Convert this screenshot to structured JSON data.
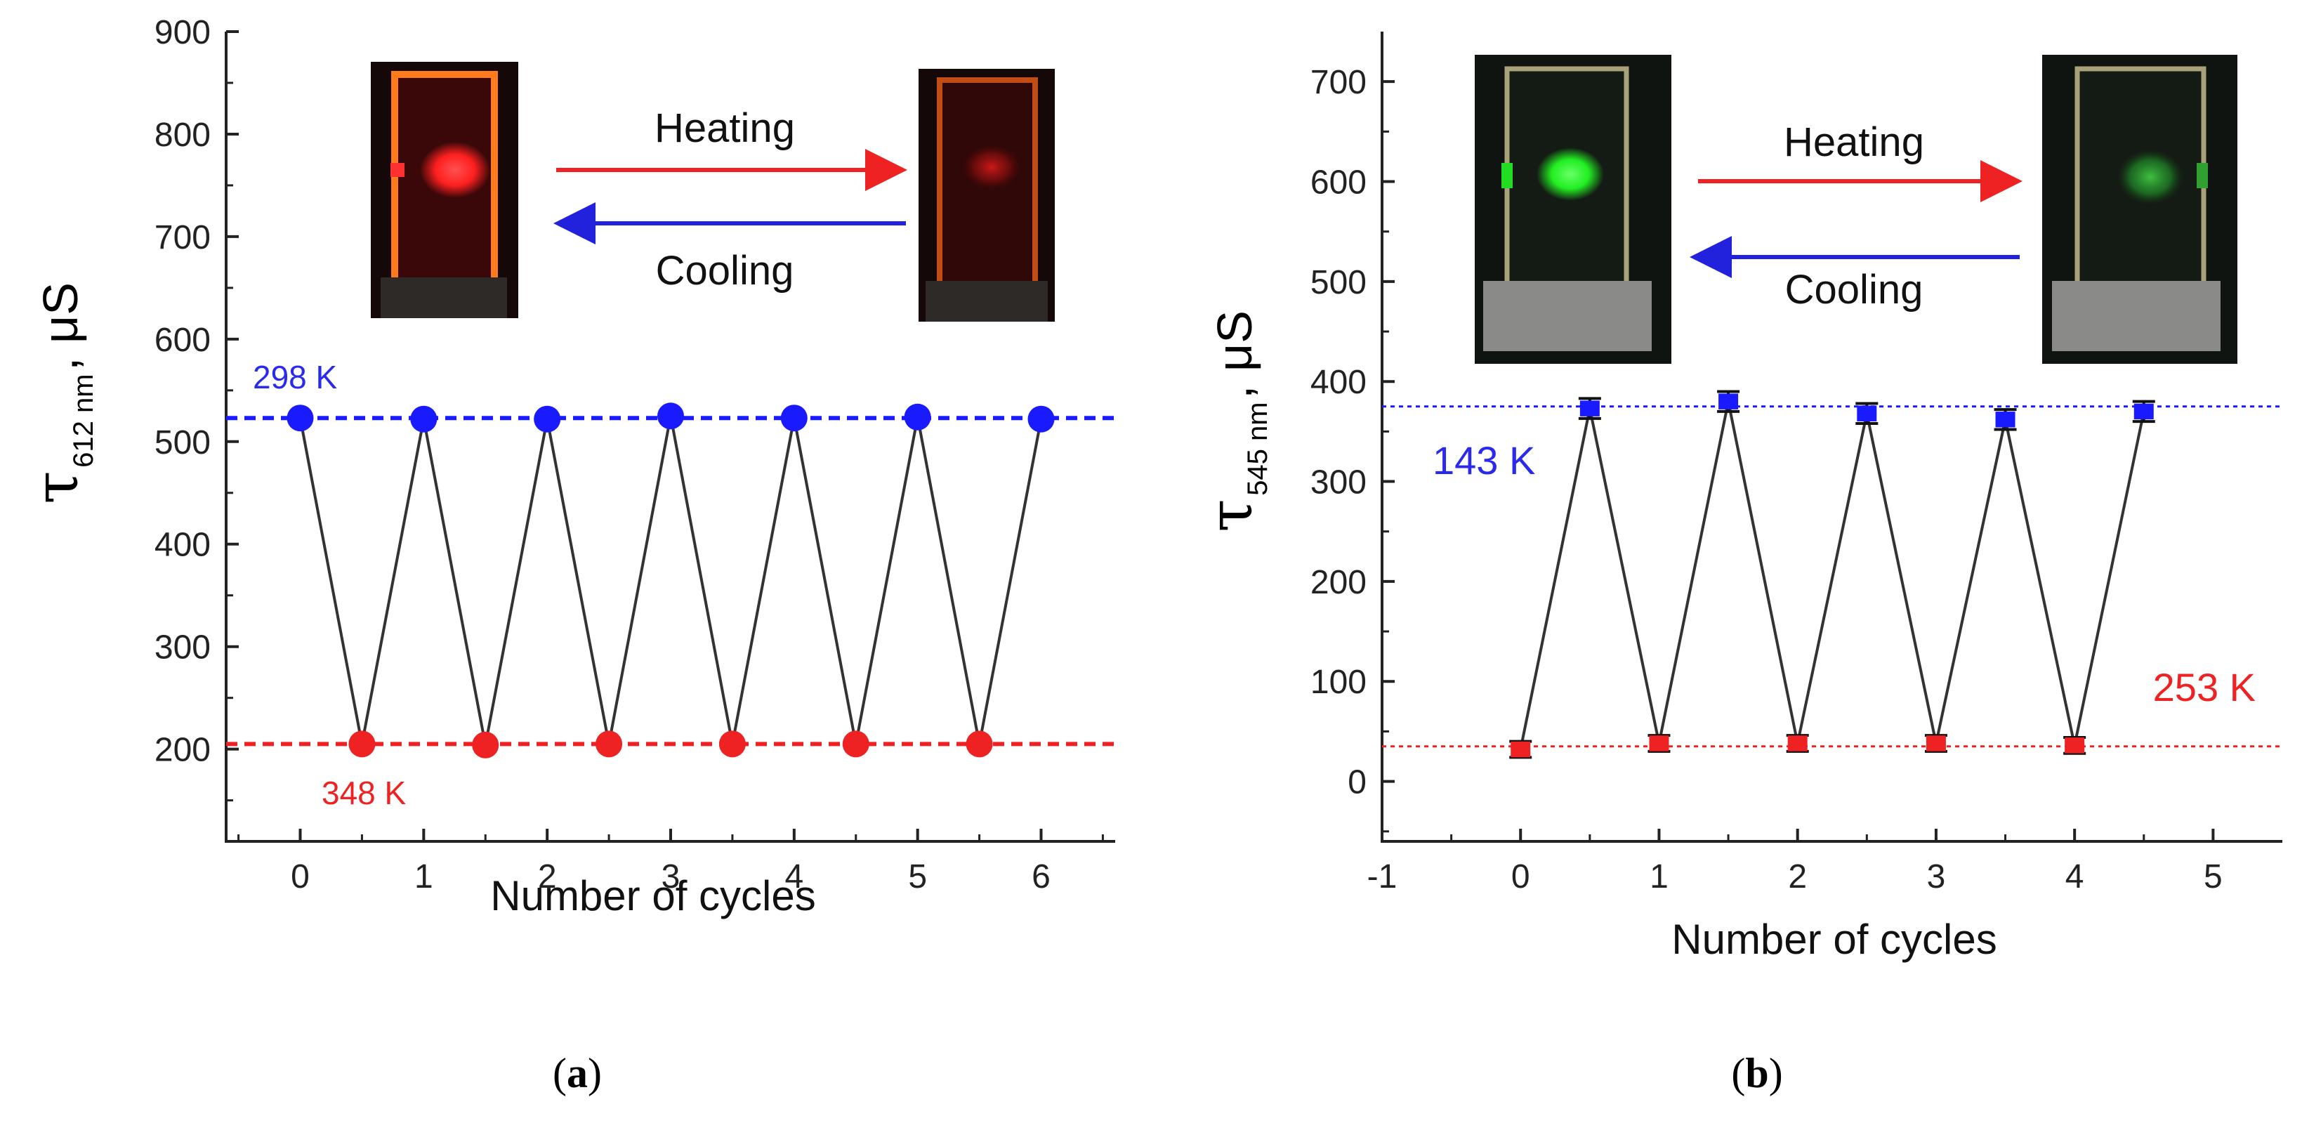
{
  "chart_data": [
    {
      "type": "line",
      "panel_label": "a",
      "xlabel": "Number of cycles",
      "ylabel": {
        "symbol": "τ",
        "subscript": "612 nm",
        "unit": "μS"
      },
      "xlim": [
        -0.6,
        6.6
      ],
      "ylim": [
        110,
        900
      ],
      "x_ticks": [
        "0",
        "1",
        "2",
        "3",
        "4",
        "5",
        "6"
      ],
      "y_ticks": [
        "200",
        "300",
        "400",
        "500",
        "600",
        "700",
        "800",
        "900"
      ],
      "series": [
        {
          "name": "lifetime",
          "x": [
            0,
            0.5,
            1,
            1.5,
            2,
            2.5,
            3,
            3.5,
            4,
            4.5,
            5,
            5.5,
            6
          ],
          "y": [
            523,
            205,
            522,
            204,
            522,
            205,
            525,
            205,
            523,
            205,
            524,
            205,
            522
          ]
        }
      ],
      "reference_lines": [
        {
          "label": "298 K",
          "y": 523,
          "color": "#1a1aff"
        },
        {
          "label": "348 K",
          "y": 205,
          "color": "#ee2222"
        }
      ],
      "annotations": {
        "heating": "Heating",
        "cooling": "Cooling"
      },
      "photos": [
        {
          "name": "cuvette-red-bright-photo",
          "glow": "#ff2020"
        },
        {
          "name": "cuvette-red-dim-photo",
          "glow": "#c01010"
        }
      ]
    },
    {
      "type": "line",
      "panel_label": "b",
      "xlabel": "Number of cycles",
      "ylabel": {
        "symbol": "τ",
        "subscript": "545 nm",
        "unit": "μS"
      },
      "xlim": [
        -1,
        5.5
      ],
      "ylim": [
        -60,
        750
      ],
      "x_ticks": [
        "-1",
        "0",
        "1",
        "2",
        "3",
        "4",
        "5"
      ],
      "y_ticks": [
        "0",
        "100",
        "200",
        "300",
        "400",
        "500",
        "600",
        "700"
      ],
      "series": [
        {
          "name": "lifetime",
          "x": [
            0,
            0.5,
            1,
            1.5,
            2,
            2.5,
            3,
            3.5,
            4,
            4.5
          ],
          "y": [
            32,
            373,
            38,
            380,
            38,
            368,
            38,
            362,
            36,
            370
          ],
          "error": [
            8,
            10,
            8,
            10,
            8,
            10,
            8,
            10,
            8,
            10
          ]
        }
      ],
      "reference_lines": [
        {
          "label": "143 K",
          "y": 375,
          "color": "#1a1aff"
        },
        {
          "label": "253 K",
          "y": 35,
          "color": "#ee2222"
        }
      ],
      "annotations": {
        "heating": "Heating",
        "cooling": "Cooling"
      },
      "photos": [
        {
          "name": "cuvette-green-bright-photo",
          "glow": "#22ee22"
        },
        {
          "name": "cuvette-green-dim-photo",
          "glow": "#20a030"
        }
      ]
    }
  ]
}
